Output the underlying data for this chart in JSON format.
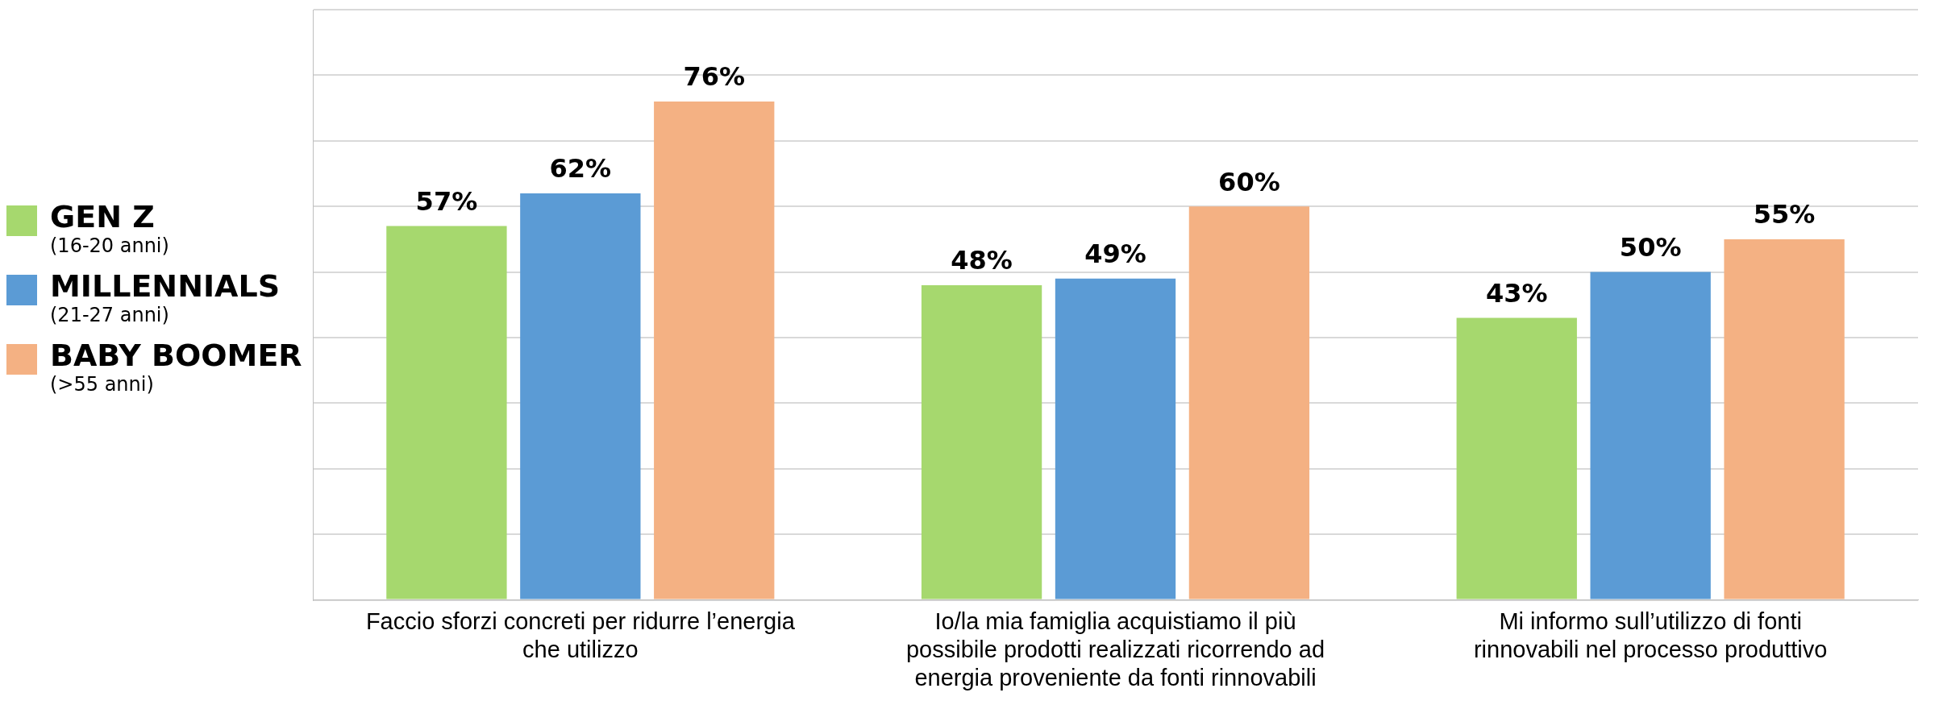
{
  "chart_data": {
    "type": "bar",
    "categories": [
      "Faccio sforzi concreti per ridurre l’energia che utilizzo",
      "Io/la mia famiglia acquistiamo il più possibile prodotti realizzati ricorrendo ad energia proveniente da fonti rinnovabili",
      "Mi informo sull’utilizzo di fonti rinnovabili nel processo produttivo"
    ],
    "series": [
      {
        "name": "GEN Z (16-20 anni)",
        "color": "#a6d86e",
        "values": [
          57,
          48,
          43
        ],
        "value_labels": [
          "57%",
          "48%",
          "43%"
        ]
      },
      {
        "name": "MILLENNIALS (21-27 anni)",
        "color": "#5b9bd5",
        "values": [
          62,
          49,
          50
        ],
        "value_labels": [
          "62%",
          "49%",
          "50%"
        ]
      },
      {
        "name": "BABY BOOMER (>55 anni)",
        "color": "#f4b183",
        "values": [
          76,
          60,
          55
        ],
        "value_labels": [
          "76%",
          "60%",
          "55%"
        ]
      }
    ],
    "tick_labels": "x",
    "grid": "y",
    "legend": "left"
  }
}
